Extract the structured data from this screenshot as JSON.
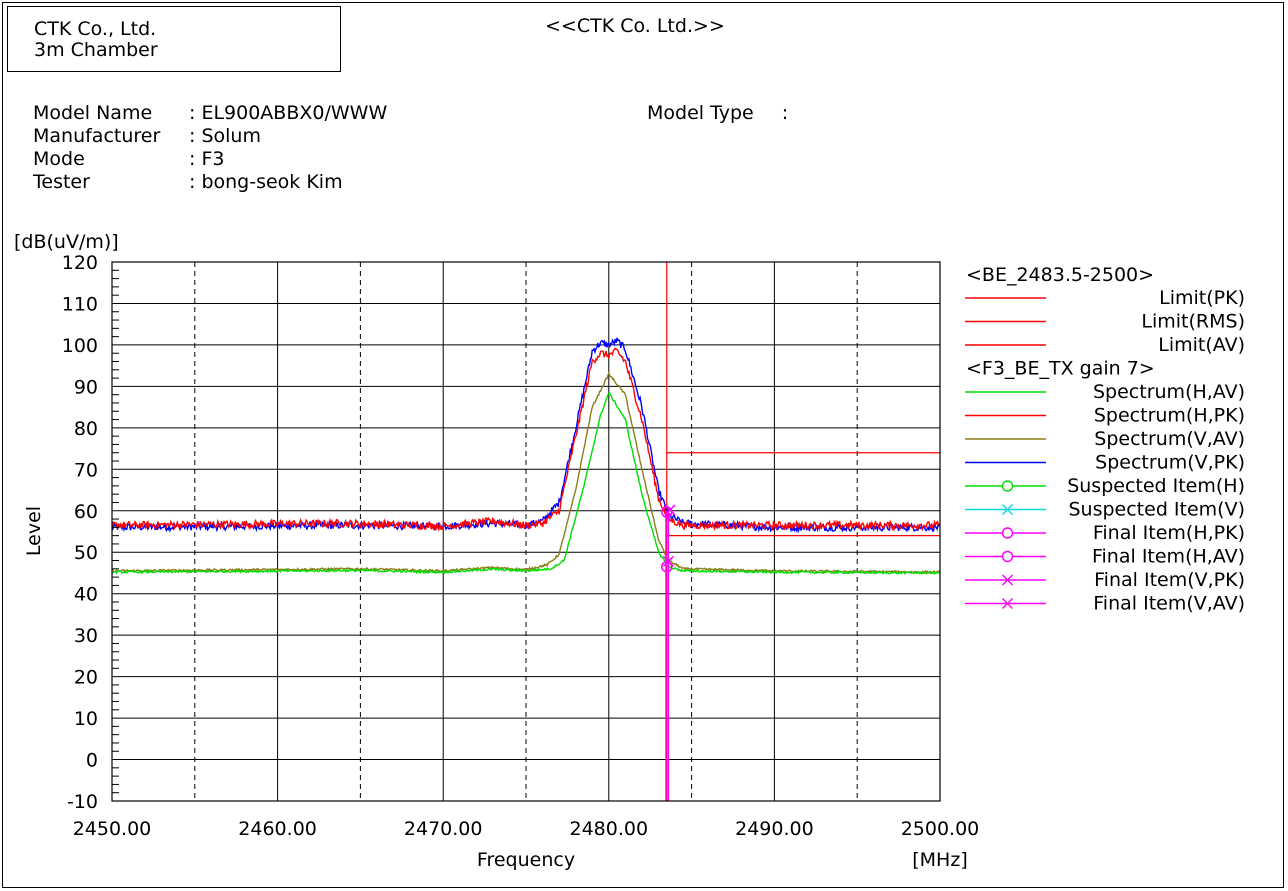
{
  "header": {
    "company_line1": "CTK Co., Ltd.",
    "company_line2": "3m Chamber",
    "title": "<<CTK Co. Ltd.>>"
  },
  "info": {
    "model_name_label": "Model Name",
    "model_name_value": ": EL900ABBX0/WWW",
    "manufacturer_label": "Manufacturer",
    "manufacturer_value": ": Solum",
    "mode_label": "Mode",
    "mode_value": ": F3",
    "tester_label": "Tester",
    "tester_value": ": bong-seok Kim",
    "model_type_label": "Model Type",
    "model_type_value": ":"
  },
  "chart_data": {
    "type": "line",
    "ylabel": "Level",
    "yunit": "[dB(uV/m)]",
    "xlabel": "Frequency",
    "xunit": "[MHz]",
    "xlim": [
      2450,
      2500
    ],
    "ylim": [
      -10,
      120
    ],
    "x_ticks": [
      "2450.00",
      "2460.00",
      "2470.00",
      "2480.00",
      "2490.00",
      "2500.00"
    ],
    "y_ticks": [
      "120",
      "110",
      "100",
      "90",
      "80",
      "70",
      "60",
      "50",
      "40",
      "30",
      "20",
      "10",
      "0",
      "-10"
    ],
    "grid": true,
    "legend": {
      "position": "right",
      "group1": "<BE_2483.5-2500>",
      "group2": "<F3_BE_TX gain 7>",
      "items": [
        {
          "label": "Limit(PK)",
          "color": "#ff0000",
          "marker": "none"
        },
        {
          "label": "Limit(RMS)",
          "color": "#ff0000",
          "marker": "none"
        },
        {
          "label": "Limit(AV)",
          "color": "#ff0000",
          "marker": "none"
        },
        {
          "label": "Spectrum(H,AV)",
          "color": "#00dd00",
          "marker": "none"
        },
        {
          "label": "Spectrum(H,PK)",
          "color": "#ff0000",
          "marker": "none"
        },
        {
          "label": "Spectrum(V,AV)",
          "color": "#8b7d1a",
          "marker": "none"
        },
        {
          "label": "Spectrum(V,PK)",
          "color": "#0000ff",
          "marker": "none"
        },
        {
          "label": "Suspected Item(H)",
          "color": "#00dd00",
          "marker": "circle"
        },
        {
          "label": "Suspected Item(V)",
          "color": "#00dddd",
          "marker": "cross"
        },
        {
          "label": "Final Item(H,PK)",
          "color": "#ff00ff",
          "marker": "circle"
        },
        {
          "label": "Final Item(H,AV)",
          "color": "#ff00ff",
          "marker": "circle"
        },
        {
          "label": "Final Item(V,PK)",
          "color": "#ff00ff",
          "marker": "cross"
        },
        {
          "label": "Final Item(V,AV)",
          "color": "#ff00ff",
          "marker": "cross"
        }
      ]
    },
    "limits": [
      {
        "name": "Limit(PK)",
        "x_start": 2483.5,
        "x_end": 2500,
        "level": 74,
        "color": "#ff0000"
      },
      {
        "name": "Limit(AV)",
        "x_start": 2483.5,
        "x_end": 2500,
        "level": 54,
        "color": "#ff0000"
      }
    ],
    "band_edge_mhz": 2483.5,
    "series": [
      {
        "name": "Spectrum(V,PK)",
        "color": "#0000ff",
        "noise": 0.9,
        "points": [
          [
            2450,
            56
          ],
          [
            2464,
            56.5
          ],
          [
            2470,
            56.3
          ],
          [
            2473,
            57
          ],
          [
            2475,
            56.5
          ],
          [
            2476,
            57.5
          ],
          [
            2477,
            62
          ],
          [
            2478,
            80
          ],
          [
            2479,
            98.5
          ],
          [
            2479.5,
            100.5
          ],
          [
            2480,
            100
          ],
          [
            2480.5,
            101
          ],
          [
            2481,
            99
          ],
          [
            2482,
            85
          ],
          [
            2483,
            65
          ],
          [
            2483.6,
            59
          ],
          [
            2484.5,
            57
          ],
          [
            2490,
            56
          ],
          [
            2500,
            56
          ]
        ]
      },
      {
        "name": "Spectrum(H,PK)",
        "color": "#ff0000",
        "noise": 0.9,
        "points": [
          [
            2450,
            56.5
          ],
          [
            2464,
            57
          ],
          [
            2470,
            56.3
          ],
          [
            2473,
            57.5
          ],
          [
            2475,
            56.5
          ],
          [
            2476,
            57
          ],
          [
            2477,
            60
          ],
          [
            2478,
            78
          ],
          [
            2479,
            96
          ],
          [
            2479.5,
            98
          ],
          [
            2480,
            97.5
          ],
          [
            2480.5,
            98.5
          ],
          [
            2481,
            96
          ],
          [
            2482,
            82
          ],
          [
            2483,
            63
          ],
          [
            2483.6,
            58
          ],
          [
            2484.5,
            56.5
          ],
          [
            2490,
            56.5
          ],
          [
            2500,
            56.5
          ]
        ]
      },
      {
        "name": "Spectrum(V,AV)",
        "color": "#8b7d1a",
        "noise": 0.25,
        "points": [
          [
            2450,
            45.5
          ],
          [
            2465,
            46
          ],
          [
            2470,
            45.5
          ],
          [
            2473,
            46.3
          ],
          [
            2475,
            45.8
          ],
          [
            2476.3,
            47
          ],
          [
            2477,
            49.5
          ],
          [
            2478,
            65
          ],
          [
            2479,
            85
          ],
          [
            2480,
            93
          ],
          [
            2481,
            88
          ],
          [
            2482,
            70
          ],
          [
            2483,
            53
          ],
          [
            2483.6,
            48
          ],
          [
            2484.5,
            46
          ],
          [
            2490,
            45.5
          ],
          [
            2500,
            45.2
          ]
        ]
      },
      {
        "name": "Spectrum(H,AV)",
        "color": "#00dd00",
        "noise": 0.25,
        "points": [
          [
            2450,
            45.2
          ],
          [
            2465,
            45.6
          ],
          [
            2470,
            45.2
          ],
          [
            2473,
            45.9
          ],
          [
            2475,
            45.5
          ],
          [
            2476.5,
            46
          ],
          [
            2477.3,
            48
          ],
          [
            2478.5,
            66
          ],
          [
            2479.5,
            83
          ],
          [
            2480,
            88.5
          ],
          [
            2481,
            82
          ],
          [
            2482,
            64
          ],
          [
            2483,
            50
          ],
          [
            2483.6,
            46.5
          ],
          [
            2484.5,
            45.5
          ],
          [
            2490,
            45.2
          ],
          [
            2500,
            45
          ]
        ]
      }
    ],
    "markers": [
      {
        "name": "Final Item(V,PK)",
        "x": 2483.7,
        "y": 60.2,
        "color": "#ff00ff",
        "shape": "cross"
      },
      {
        "name": "Final Item(H,PK)",
        "x": 2483.5,
        "y": 59.7,
        "color": "#ff00ff",
        "shape": "circle"
      },
      {
        "name": "Final Item(V,AV)",
        "x": 2483.6,
        "y": 47.8,
        "color": "#ff00ff",
        "shape": "cross"
      },
      {
        "name": "Final Item(H,AV)",
        "x": 2483.5,
        "y": 46.5,
        "color": "#ff00ff",
        "shape": "circle"
      }
    ]
  }
}
